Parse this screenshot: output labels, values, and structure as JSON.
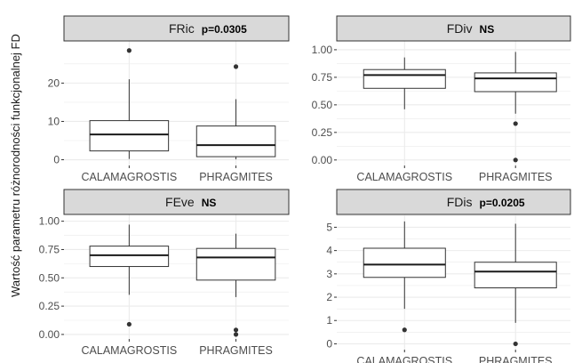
{
  "ylabel": "Wartość parametru różnorodności funkcjonalnej FD",
  "colors": {
    "strip_fill": "#d9d9d9",
    "strip_border": "#333333",
    "grid": "#ebebeb",
    "box_line": "#333333"
  },
  "chart_data": [
    {
      "type": "boxplot",
      "title": "FRic",
      "significance": "p=0.0305",
      "categories": [
        "CALAMAGROSTIS",
        "PHRAGMITES"
      ],
      "ylim": [
        -1.5,
        31
      ],
      "yticks": [
        0,
        10,
        20
      ],
      "ytick_labels": [
        "0",
        "10",
        "20"
      ],
      "grid": true,
      "boxes": [
        {
          "min": 0.2,
          "q1": 2.3,
          "median": 6.6,
          "q3": 10.2,
          "max": 21.0,
          "outliers": [
            28.5
          ]
        },
        {
          "min": 0.1,
          "q1": 0.8,
          "median": 3.8,
          "q3": 8.8,
          "max": 15.8,
          "outliers": [
            24.3
          ]
        }
      ]
    },
    {
      "type": "boxplot",
      "title": "FDiv",
      "significance": "NS",
      "categories": [
        "CALAMAGROSTIS",
        "PHRAGMITES"
      ],
      "ylim": [
        -0.05,
        1.08
      ],
      "yticks": [
        0,
        0.25,
        0.5,
        0.75,
        1.0
      ],
      "ytick_labels": [
        "0.00",
        "0.25",
        "0.50",
        "0.75",
        "1.00"
      ],
      "grid": true,
      "boxes": [
        {
          "min": 0.46,
          "q1": 0.65,
          "median": 0.77,
          "q3": 0.82,
          "max": 0.93,
          "outliers": []
        },
        {
          "min": 0.42,
          "q1": 0.62,
          "median": 0.74,
          "q3": 0.79,
          "max": 0.98,
          "outliers": [
            0.33,
            0.0
          ]
        }
      ]
    },
    {
      "type": "boxplot",
      "title": "FEve",
      "significance": "NS",
      "categories": [
        "CALAMAGROSTIS",
        "PHRAGMITES"
      ],
      "ylim": [
        -0.04,
        1.06
      ],
      "yticks": [
        0,
        0.25,
        0.5,
        0.75,
        1.0
      ],
      "ytick_labels": [
        "0.00",
        "0.25",
        "0.50",
        "0.75",
        "1.00"
      ],
      "grid": true,
      "boxes": [
        {
          "min": 0.35,
          "q1": 0.6,
          "median": 0.7,
          "q3": 0.78,
          "max": 0.97,
          "outliers": [
            0.09
          ]
        },
        {
          "min": 0.33,
          "q1": 0.48,
          "median": 0.68,
          "q3": 0.76,
          "max": 0.89,
          "outliers": [
            0.04,
            0.0
          ]
        }
      ]
    },
    {
      "type": "boxplot",
      "title": "FDis",
      "significance": "p=0.0205",
      "categories": [
        "CALAMAGROSTIS",
        "PHRAGMITES"
      ],
      "ylim": [
        -0.25,
        5.55
      ],
      "yticks": [
        0,
        1,
        2,
        3,
        4,
        5
      ],
      "ytick_labels": [
        "0",
        "1",
        "2",
        "3",
        "4",
        "5"
      ],
      "grid": true,
      "boxes": [
        {
          "min": 1.5,
          "q1": 2.85,
          "median": 3.4,
          "q3": 4.1,
          "max": 5.25,
          "outliers": [
            0.6
          ]
        },
        {
          "min": 0.9,
          "q1": 2.4,
          "median": 3.1,
          "q3": 3.5,
          "max": 5.15,
          "outliers": [
            0.0
          ]
        }
      ]
    }
  ]
}
